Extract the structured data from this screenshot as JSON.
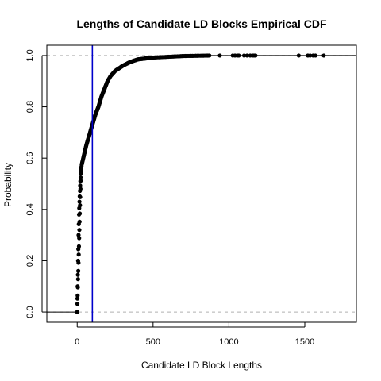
{
  "chart_data": {
    "type": "scatter",
    "title": "Lengths of Candidate LD Blocks Empirical CDF",
    "xlabel": "Candidate LD Block Lengths",
    "ylabel": "Probability",
    "xlim": [
      -200,
      1840
    ],
    "ylim": [
      -0.04,
      1.04
    ],
    "x_ticks": [
      0,
      500,
      1000,
      1500
    ],
    "y_ticks": [
      0.0,
      0.2,
      0.4,
      0.6,
      0.8,
      1.0
    ],
    "x_tick_labels": [
      "0",
      "500",
      "1000",
      "1500"
    ],
    "y_tick_labels": [
      "0.0",
      "0.2",
      "0.4",
      "0.6",
      "0.8",
      "1.0"
    ],
    "reference_lines": [
      {
        "orientation": "horizontal",
        "y": 0,
        "style": "dashed",
        "color": "#b0b0b0"
      },
      {
        "orientation": "horizontal",
        "y": 1,
        "style": "dashed",
        "color": "#b0b0b0"
      },
      {
        "orientation": "vertical",
        "x": 100,
        "style": "solid",
        "color": "#0000cc"
      }
    ],
    "ecdf_knots": [
      [
        0,
        0.0
      ],
      [
        1,
        0.035
      ],
      [
        2,
        0.07
      ],
      [
        3,
        0.1
      ],
      [
        4,
        0.13
      ],
      [
        5,
        0.16
      ],
      [
        6,
        0.2
      ],
      [
        7,
        0.23
      ],
      [
        8,
        0.26
      ],
      [
        9,
        0.3
      ],
      [
        10,
        0.33
      ],
      [
        12,
        0.38
      ],
      [
        15,
        0.43
      ],
      [
        20,
        0.5
      ],
      [
        25,
        0.55
      ],
      [
        30,
        0.575
      ],
      [
        40,
        0.6
      ],
      [
        50,
        0.625
      ],
      [
        60,
        0.65
      ],
      [
        70,
        0.67
      ],
      [
        80,
        0.69
      ],
      [
        90,
        0.71
      ],
      [
        100,
        0.73
      ],
      [
        120,
        0.77
      ],
      [
        140,
        0.8
      ],
      [
        160,
        0.84
      ],
      [
        180,
        0.87
      ],
      [
        200,
        0.9
      ],
      [
        220,
        0.92
      ],
      [
        250,
        0.94
      ],
      [
        300,
        0.96
      ],
      [
        350,
        0.975
      ],
      [
        400,
        0.985
      ],
      [
        500,
        0.992
      ],
      [
        600,
        0.995
      ],
      [
        700,
        0.998
      ],
      [
        880,
        1.0
      ]
    ],
    "tail_points_x": [
      940,
      1025,
      1040,
      1055,
      1065,
      1100,
      1120,
      1140,
      1155,
      1165,
      1175,
      1460,
      1520,
      1535,
      1555,
      1570,
      1625
    ],
    "point_color": "#000000",
    "grid": false,
    "legend": "none"
  }
}
